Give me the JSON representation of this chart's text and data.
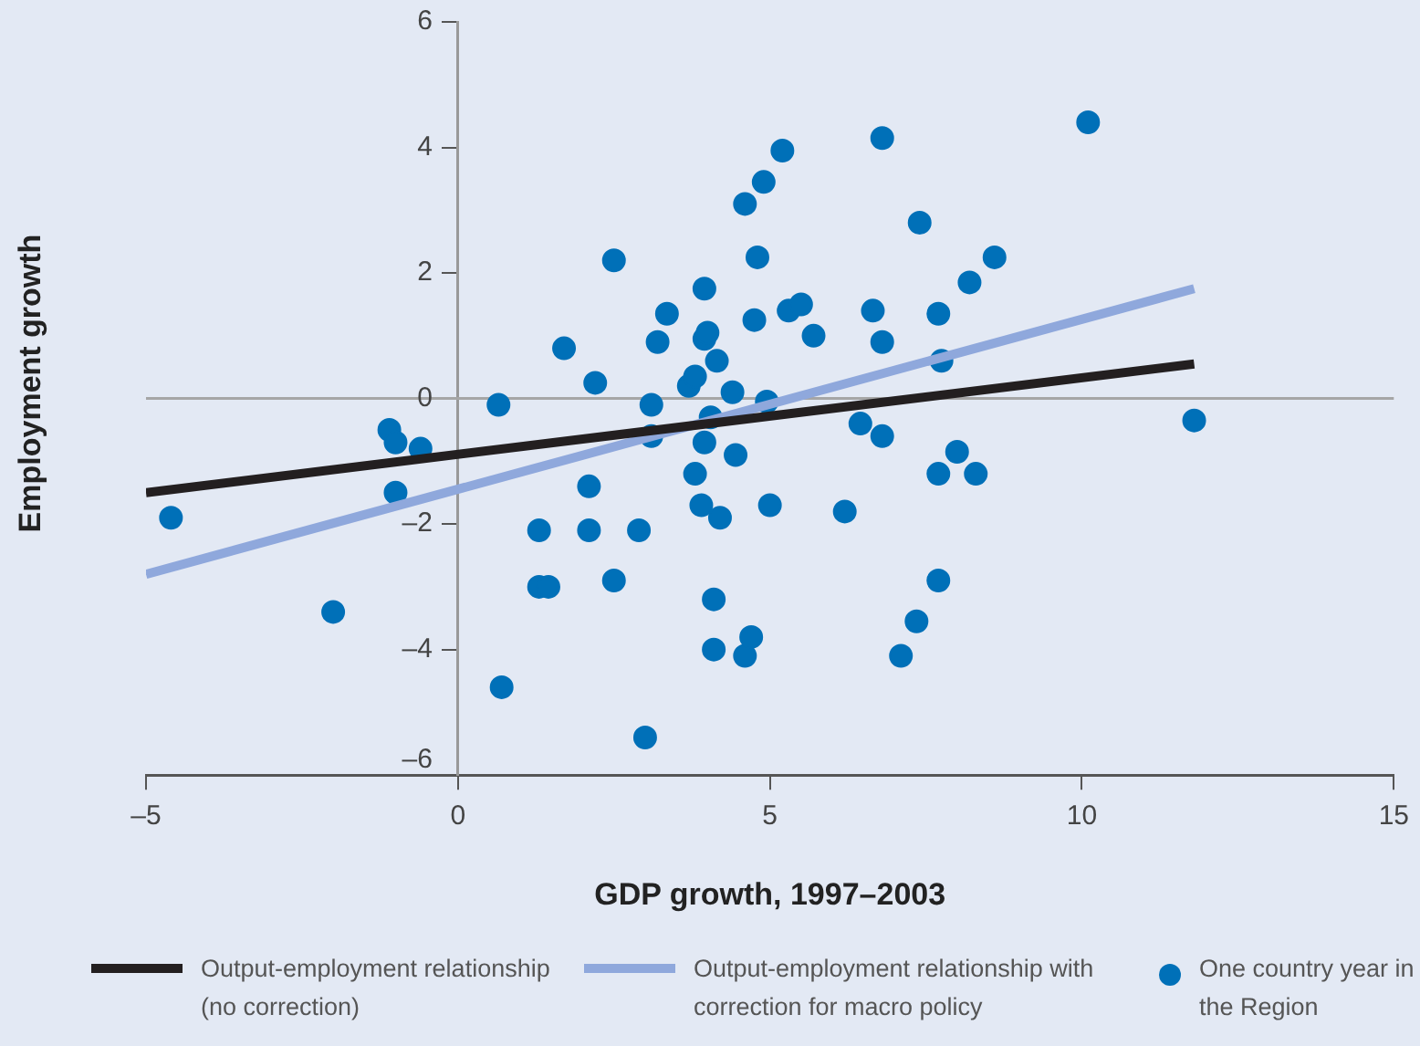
{
  "chart_data": {
    "type": "scatter",
    "xlabel": "GDP growth, 1997–2003",
    "ylabel": "Employment growth",
    "xlim": [
      -5,
      15
    ],
    "xticks": [
      {
        "value": -5,
        "label": "–5"
      },
      0,
      5,
      10,
      15
    ],
    "ylim": [
      -6,
      6
    ],
    "yticks": [
      {
        "value": -6,
        "label": "–6"
      },
      {
        "value": -4,
        "label": "–4"
      },
      {
        "value": -2,
        "label": "–2"
      },
      0,
      2,
      4,
      6
    ],
    "grid": false,
    "legend": "bottom",
    "ref_lines": [
      {
        "axis": "y",
        "value": 0,
        "color": "#a6a6a6"
      }
    ],
    "series": [
      {
        "name": "Output-employment relationship (no correction)",
        "type": "line",
        "color": "#231f20",
        "marker": "none",
        "x": [
          -5,
          11.8
        ],
        "values": [
          -1.5,
          0.55
        ]
      },
      {
        "name": "Output-employment relationship with correction for macro policy",
        "type": "line",
        "color": "#8fa8dc",
        "marker": "none",
        "x": [
          -5,
          11.8
        ],
        "values": [
          -2.8,
          1.75
        ]
      },
      {
        "name": "One country year in the Region",
        "color": "#0070b8",
        "marker": "circle",
        "x": [
          -4.6,
          -2.0,
          -1.1,
          -1.0,
          -0.6,
          -1.0,
          0.65,
          0.7,
          1.7,
          1.3,
          1.3,
          1.45,
          2.1,
          2.1,
          2.2,
          2.5,
          2.5,
          2.9,
          3.0,
          3.1,
          3.1,
          3.2,
          3.35,
          3.7,
          3.8,
          3.8,
          3.9,
          3.95,
          3.95,
          4.0,
          3.95,
          4.05,
          4.1,
          4.1,
          4.15,
          4.2,
          4.4,
          4.45,
          4.6,
          4.6,
          4.7,
          4.75,
          4.8,
          4.9,
          4.95,
          5.0,
          5.2,
          5.3,
          5.5,
          5.7,
          6.2,
          6.45,
          6.65,
          6.8,
          6.8,
          6.8,
          7.1,
          7.35,
          7.4,
          7.7,
          7.7,
          7.75,
          7.7,
          8.0,
          8.2,
          8.3,
          8.6,
          10.1,
          11.8
        ],
        "values": [
          -1.9,
          -3.4,
          -0.5,
          -0.7,
          -0.8,
          -1.5,
          -0.1,
          -4.6,
          0.8,
          -2.1,
          -3.0,
          -3.0,
          -2.1,
          -1.4,
          0.25,
          2.2,
          -2.9,
          -2.1,
          -5.4,
          -0.6,
          -0.1,
          0.9,
          1.35,
          0.2,
          0.35,
          -1.2,
          -1.7,
          1.75,
          0.95,
          1.05,
          -0.7,
          -0.3,
          -3.2,
          -4.0,
          0.6,
          -1.9,
          0.1,
          -0.9,
          -4.1,
          3.1,
          -3.8,
          1.25,
          2.25,
          3.45,
          -0.05,
          -1.7,
          3.95,
          1.4,
          1.5,
          1.0,
          -1.8,
          -0.4,
          1.4,
          -0.6,
          0.9,
          4.15,
          -4.1,
          -3.55,
          2.8,
          -1.2,
          1.35,
          0.6,
          -2.9,
          -0.85,
          1.85,
          -1.2,
          2.25,
          4.4,
          -0.35
        ]
      }
    ]
  }
}
